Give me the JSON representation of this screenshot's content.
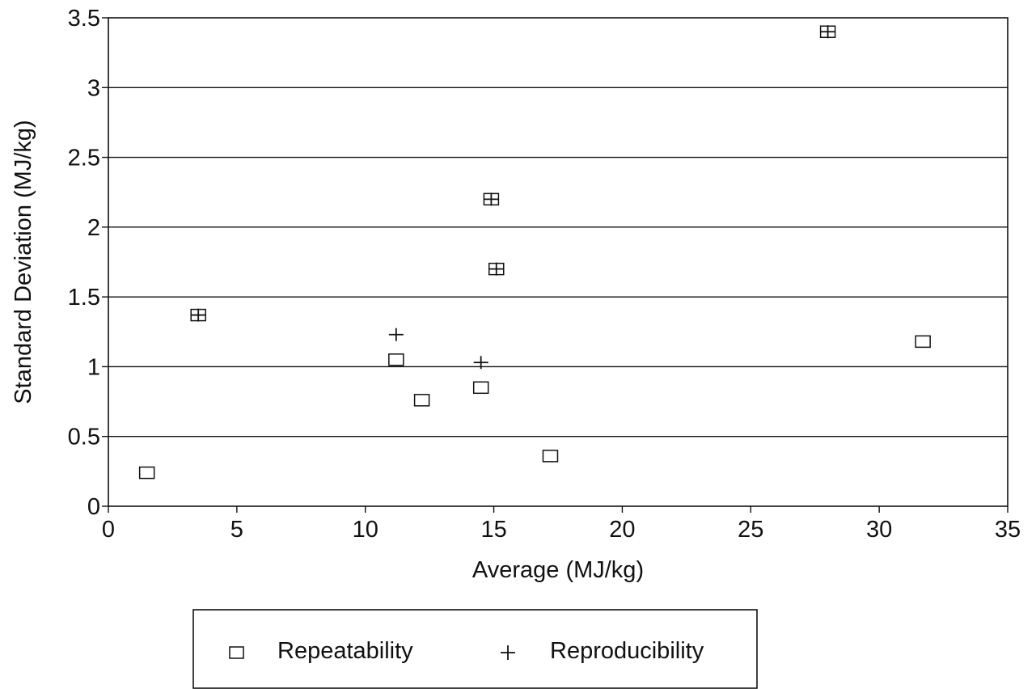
{
  "chart_data": {
    "type": "scatter",
    "title": "",
    "xlabel": "Average (MJ/kg)",
    "ylabel": "Standard Deviation (MJ/kg)",
    "xlim": [
      0,
      35
    ],
    "ylim": [
      0,
      3.5
    ],
    "x_ticks": [
      "0",
      "5",
      "10",
      "15",
      "20",
      "25",
      "30",
      "35"
    ],
    "y_ticks": [
      "0",
      "0.5",
      "1",
      "1.5",
      "2",
      "2.5",
      "3",
      "3.5"
    ],
    "grid": "horizontal",
    "legend_position": "bottom",
    "series": [
      {
        "name": "Repeatability",
        "marker": "square",
        "points": [
          {
            "x": 1.5,
            "y": 0.24
          },
          {
            "x": 3.5,
            "y": 1.37
          },
          {
            "x": 11.2,
            "y": 1.05
          },
          {
            "x": 12.2,
            "y": 0.76
          },
          {
            "x": 14.5,
            "y": 0.85
          },
          {
            "x": 14.9,
            "y": 2.2
          },
          {
            "x": 15.1,
            "y": 1.7
          },
          {
            "x": 17.2,
            "y": 0.36
          },
          {
            "x": 28.0,
            "y": 3.4
          },
          {
            "x": 31.7,
            "y": 1.18
          }
        ]
      },
      {
        "name": "Reproducibility",
        "marker": "plus",
        "points": [
          {
            "x": 3.5,
            "y": 1.37
          },
          {
            "x": 11.2,
            "y": 1.23
          },
          {
            "x": 14.5,
            "y": 1.03
          },
          {
            "x": 14.9,
            "y": 2.2
          },
          {
            "x": 15.1,
            "y": 1.7
          },
          {
            "x": 28.0,
            "y": 3.4
          }
        ]
      }
    ]
  }
}
